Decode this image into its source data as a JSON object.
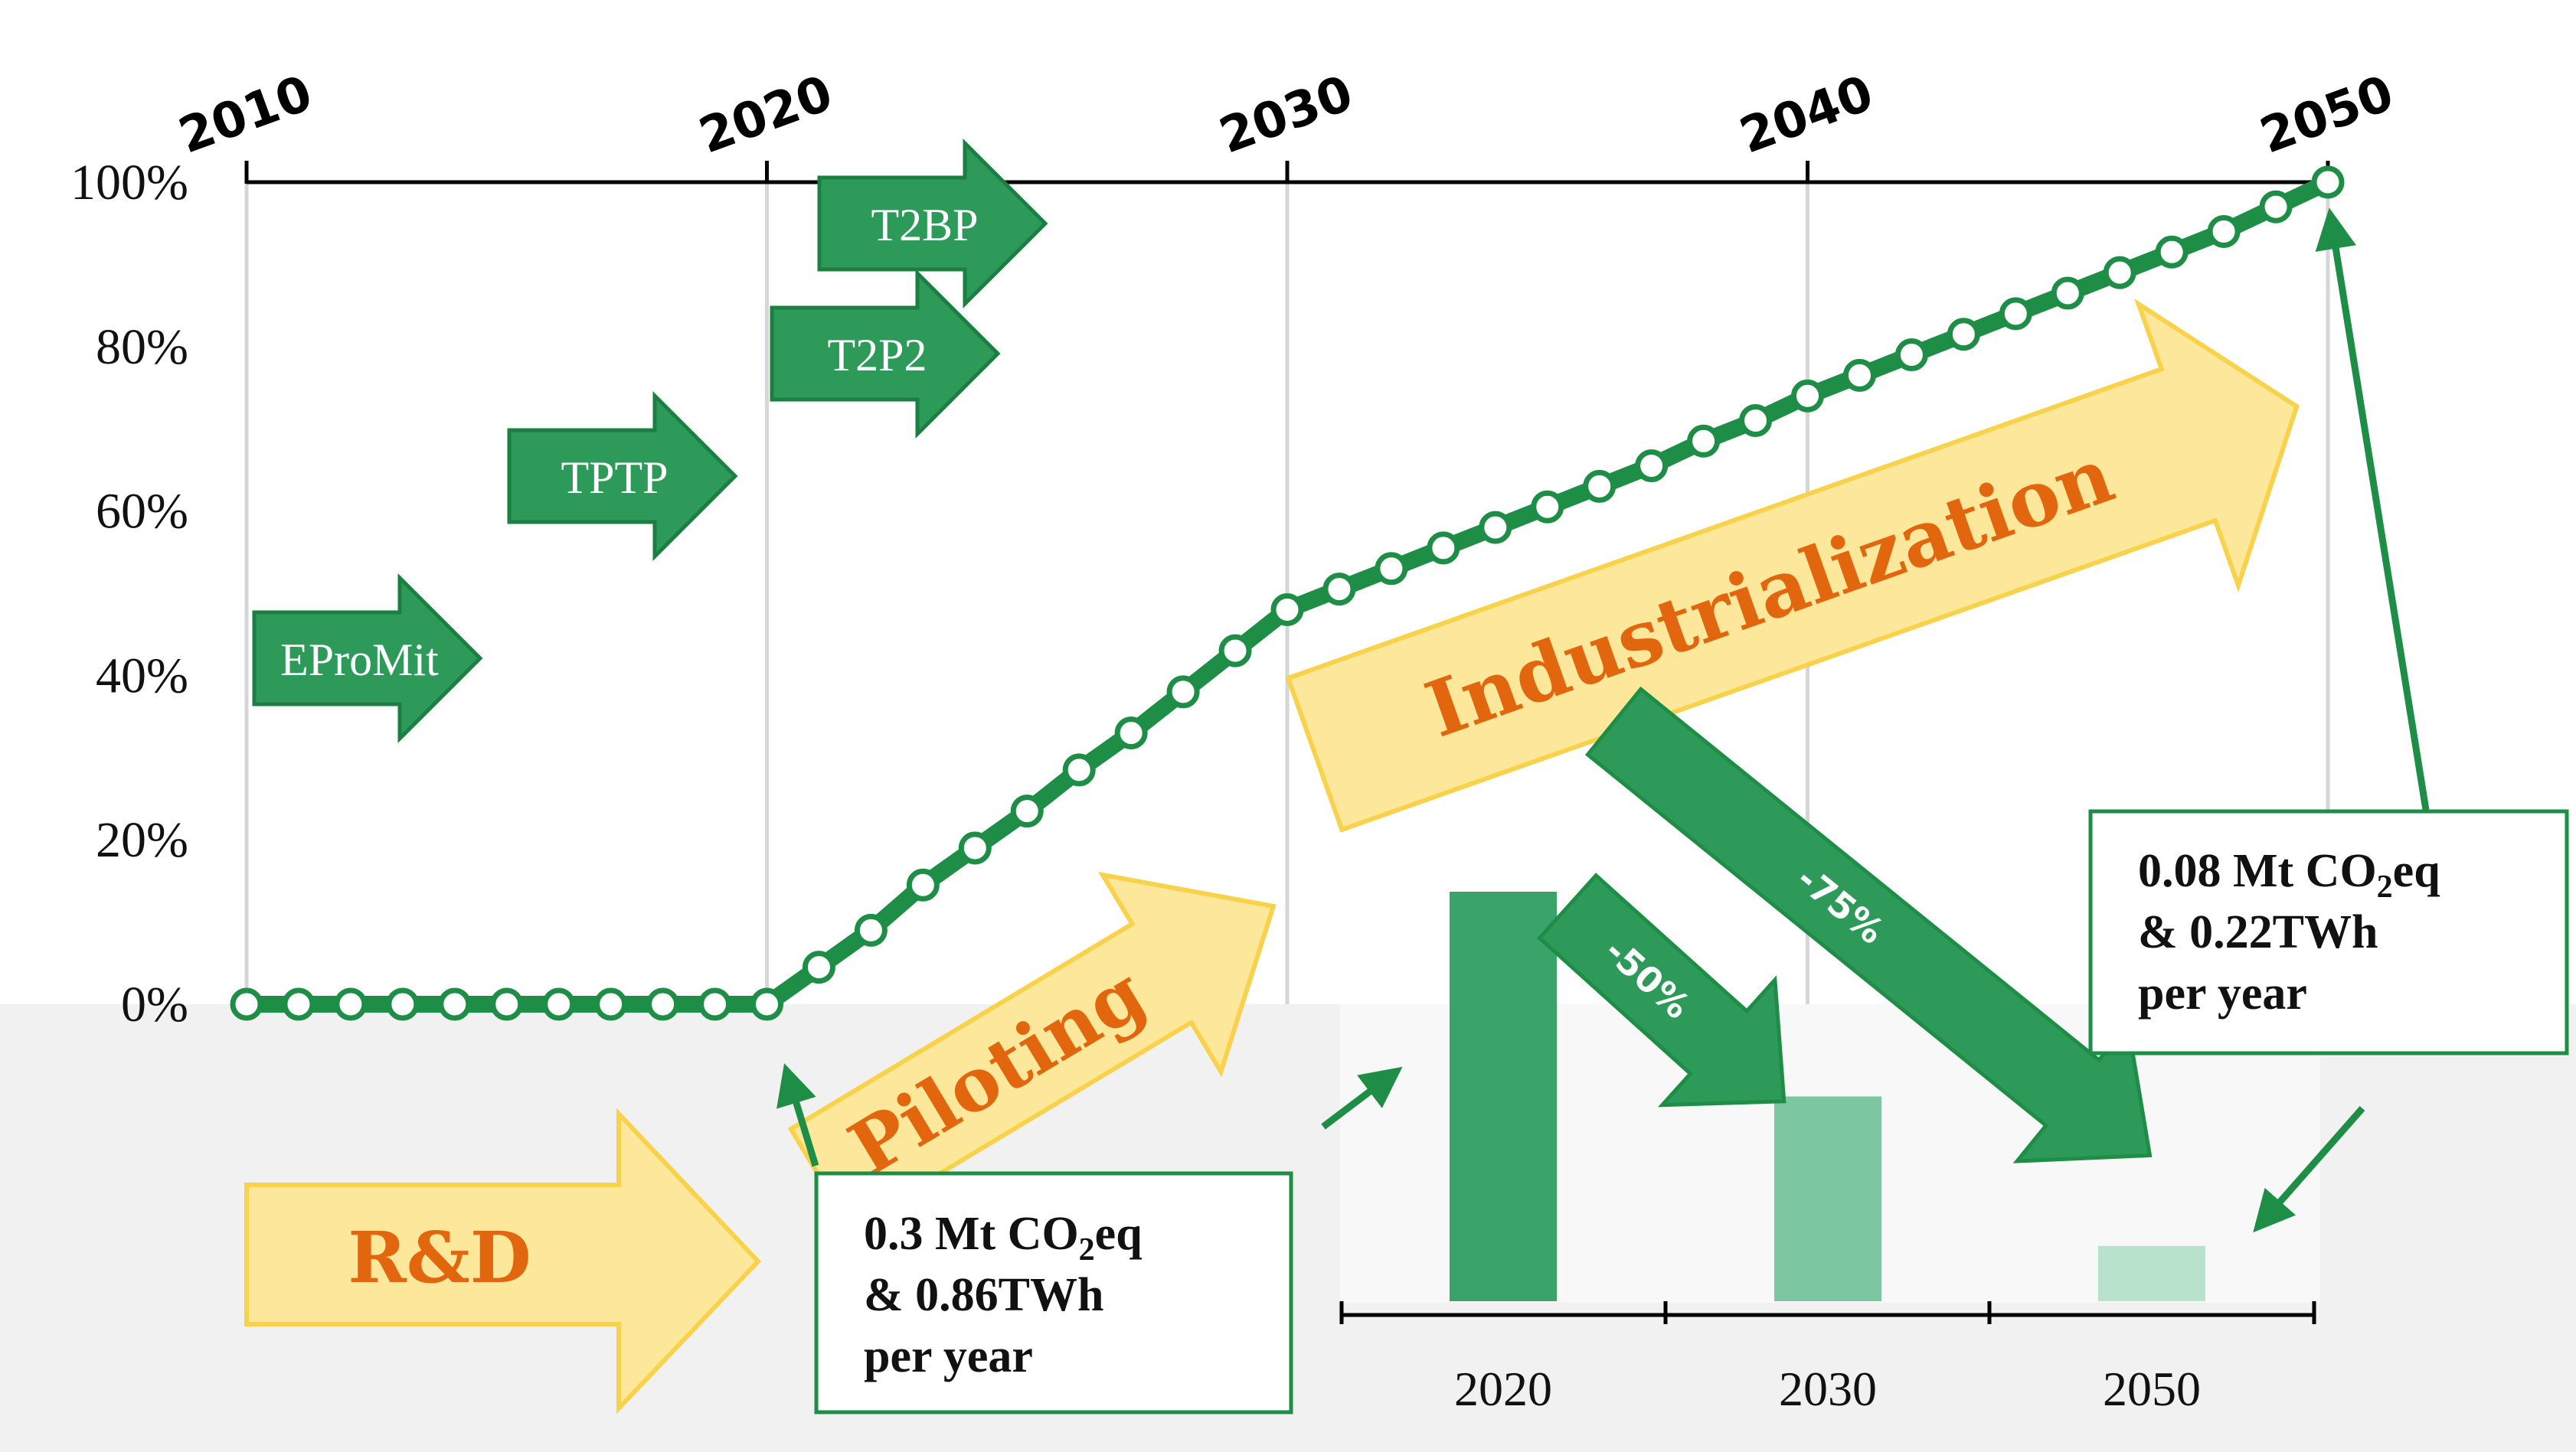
{
  "colors": {
    "green": "#1e8e47",
    "green_arrow": "#2e9a5a",
    "yellow_fill": "#fde79a",
    "yellow_stroke": "#f8d24b",
    "orange": "#e2660e",
    "bar_2020": "#3aa36a",
    "bar_2030": "#7cc6a1",
    "bar_2050": "#b9e2cc"
  },
  "chart_data": [
    {
      "type": "line",
      "x_top_ticks": [
        "2010",
        "2020",
        "2030",
        "2040",
        "2050"
      ],
      "y_ticks": [
        "0%",
        "20%",
        "40%",
        "60%",
        "80%",
        "100%"
      ],
      "ylim": [
        0,
        100
      ],
      "xlim": [
        2010,
        2050
      ],
      "grid": "vertical",
      "series": [
        {
          "x": [
            2010,
            2011,
            2012,
            2013,
            2014,
            2015,
            2016,
            2017,
            2018,
            2019,
            2020,
            2021,
            2022,
            2023,
            2024,
            2025,
            2026,
            2027,
            2028,
            2029,
            2030,
            2031,
            2032,
            2033,
            2034,
            2035,
            2036,
            2037,
            2038,
            2039,
            2040,
            2041,
            2042,
            2043,
            2044,
            2045,
            2046,
            2047,
            2048,
            2049,
            2050
          ],
          "values": [
            0,
            0,
            0,
            0,
            0,
            0,
            0,
            0,
            0,
            0,
            0,
            4.5,
            9,
            14.5,
            19,
            23.5,
            28.5,
            33,
            38,
            43,
            48,
            50.5,
            53,
            55.5,
            58,
            60.5,
            63,
            65.5,
            68.5,
            71,
            74,
            76.5,
            79,
            81.5,
            84,
            86.5,
            89,
            91.5,
            94,
            97,
            100
          ]
        }
      ],
      "projects": [
        {
          "label": "EProMit"
        },
        {
          "label": "TPTP"
        },
        {
          "label": "T2P2"
        },
        {
          "label": "T2BP"
        }
      ],
      "phases": [
        {
          "label": "R&D"
        },
        {
          "label": "Piloting"
        },
        {
          "label": "Industrialization"
        }
      ]
    },
    {
      "type": "bar",
      "categories": [
        "2020",
        "2030",
        "2050"
      ],
      "values": [
        100,
        50,
        25
      ],
      "reductions": [
        "-50%",
        "-75%"
      ]
    }
  ],
  "callouts": {
    "start": {
      "line1": "0.3 Mt CO",
      "sub": "2",
      "line1_tail": "eq",
      "line2": "& 0.86TWh",
      "line3": "per year"
    },
    "end": {
      "line1": "0.08 Mt CO",
      "sub": "2",
      "line1_tail": "eq",
      "line2": "& 0.22TWh",
      "line3": "per year"
    }
  }
}
